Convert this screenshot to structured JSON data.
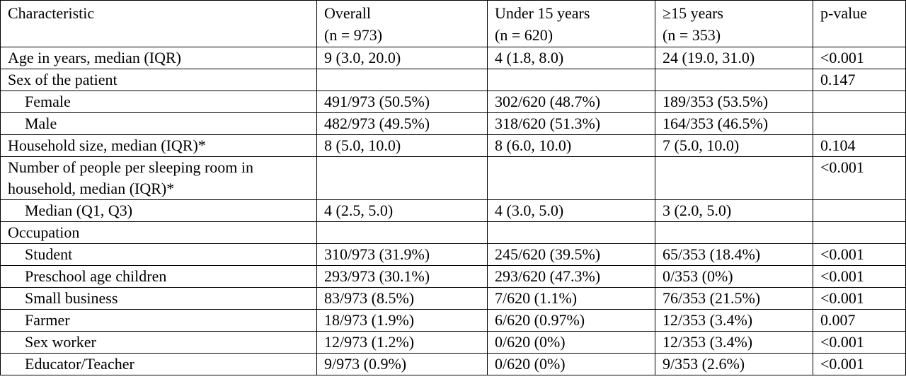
{
  "table": {
    "header": [
      [
        "Characteristic"
      ],
      [
        "Overall",
        "(n = 973)"
      ],
      [
        "Under 15 years",
        "(n = 620)"
      ],
      [
        "≥15 years",
        "(n = 353)"
      ],
      [
        "p-value"
      ]
    ],
    "rows": [
      {
        "cells": [
          "Age in years, median (IQR)",
          "9 (3.0, 20.0)",
          "4 (1.8, 8.0)",
          "24 (19.0, 31.0)",
          "<0.001"
        ]
      },
      {
        "cells": [
          "Sex of the patient",
          null,
          null,
          null,
          "0.147"
        ],
        "sub": [
          [
            "Female",
            "491/973 (50.5%)",
            "302/620 (48.7%)",
            "189/353 (53.5%)",
            null
          ],
          [
            "Male",
            "482/973 (49.5%)",
            "318/620 (51.3%)",
            "164/353 (46.5%)",
            null
          ]
        ]
      },
      {
        "cells": [
          "Household size, median (IQR)*",
          "8 (5.0, 10.0)",
          "8 (6.0, 10.0)",
          "7 (5.0, 10.0)",
          "0.104"
        ]
      },
      {
        "cells": [
          "Number of people per sleeping room in household, median (IQR)*",
          null,
          null,
          null,
          "<0.001"
        ],
        "sub": [
          [
            "Median (Q1, Q3)",
            "4 (2.5, 5.0)",
            "4 (3.0, 5.0)",
            "3 (2.0, 5.0)",
            null
          ]
        ]
      },
      {
        "cells": [
          "Occupation",
          null,
          null,
          null,
          null
        ],
        "sub": [
          [
            "Student",
            "310/973 (31.9%)",
            "245/620 (39.5%)",
            "65/353 (18.4%)",
            "<0.001"
          ],
          [
            "Preschool age children",
            "293/973 (30.1%)",
            "293/620 (47.3%)",
            "0/353 (0%)",
            "<0.001"
          ],
          [
            "Small business",
            "83/973 (8.5%)",
            "7/620 (1.1%)",
            "76/353 (21.5%)",
            "<0.001"
          ],
          [
            "Farmer",
            "18/973 (1.9%)",
            "6/620 (0.97%)",
            "12/353 (3.4%)",
            "0.007"
          ],
          [
            "Sex worker",
            "12/973 (1.2%)",
            "0/620 (0%)",
            "12/353 (3.4%)",
            "<0.001"
          ],
          [
            "Educator/Teacher",
            "9/973 (0.9%)",
            "0/620 (0%)",
            "9/353 (2.6%)",
            "<0.001"
          ]
        ]
      }
    ]
  }
}
